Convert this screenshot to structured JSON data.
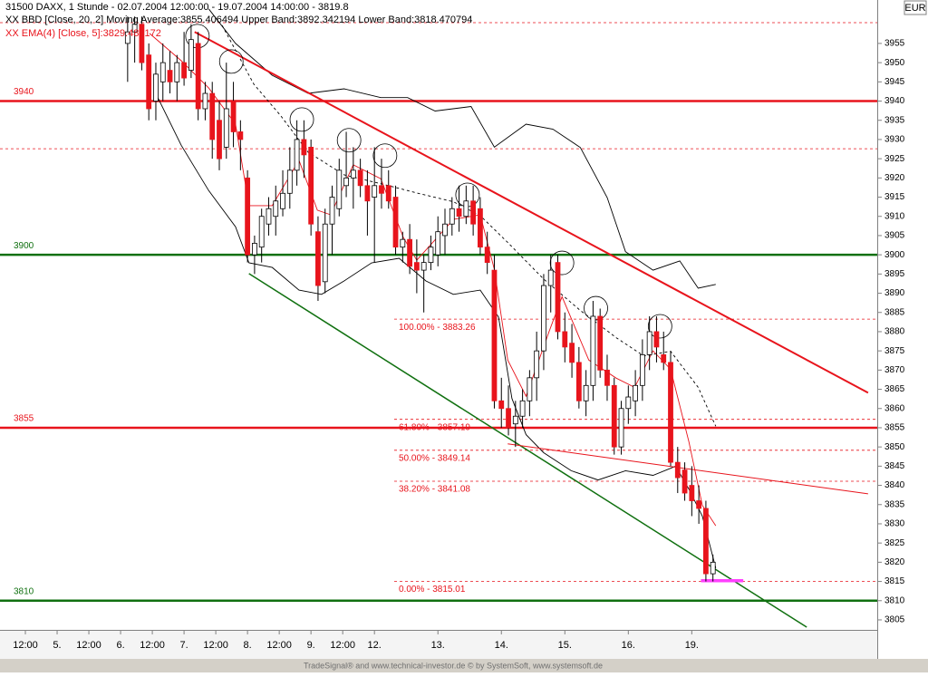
{
  "chart_data": {
    "type": "candlestick",
    "title": "31500  DAXX, 1 Stunde - 02.07.2004 12:00:00 - 19.07.2004 14:00:00 - 3819.8",
    "subtitle": "XX BBD [Close, 20, 2] Moving Average:3855.406494 Upper Band:3892.342194 Lower Band:3818.470794",
    "indicator_label": "XX EMA(4) [Close, 5]:3829.483172",
    "currency": "EUR",
    "footer": "TradeSignal® and www.technical-investor.de © by SystemSoft, www.systemsoft.de",
    "xlim": [
      -8.1,
      116.3
    ],
    "ylim": [
      3802.4,
      3966.3
    ],
    "yticks": [
      3805,
      3810,
      3815,
      3820,
      3825,
      3830,
      3835,
      3840,
      3845,
      3850,
      3855,
      3860,
      3865,
      3870,
      3875,
      3880,
      3885,
      3890,
      3895,
      3900,
      3905,
      3910,
      3915,
      3920,
      3925,
      3930,
      3935,
      3940,
      3945,
      3950,
      3955
    ],
    "xticks": [
      {
        "value": -4.5,
        "label": "12:00"
      },
      {
        "value": 0,
        "label": "5."
      },
      {
        "value": 4.5,
        "label": "12:00"
      },
      {
        "value": 9,
        "label": "6."
      },
      {
        "value": 13.5,
        "label": "12:00"
      },
      {
        "value": 18,
        "label": "7."
      },
      {
        "value": 22.5,
        "label": "12:00"
      },
      {
        "value": 27,
        "label": "8."
      },
      {
        "value": 31.5,
        "label": "12:00"
      },
      {
        "value": 36,
        "label": "9."
      },
      {
        "value": 40.5,
        "label": "12:00"
      },
      {
        "value": 45,
        "label": "12."
      },
      {
        "value": 54,
        "label": "13."
      },
      {
        "value": 63,
        "label": "14."
      },
      {
        "value": 72,
        "label": "15."
      },
      {
        "value": 81,
        "label": "16."
      },
      {
        "value": 90,
        "label": "19."
      }
    ],
    "up_color": "#ffffff",
    "down_color": "#e8141c",
    "candles": {
      "x": [
        10,
        11,
        12,
        13,
        14,
        15,
        16,
        17,
        18,
        19,
        20,
        21,
        22,
        23,
        24,
        25,
        26,
        27,
        28,
        29,
        30,
        31,
        32,
        33,
        34,
        35,
        36,
        37,
        38,
        39,
        40,
        41,
        42,
        43,
        44,
        45,
        46,
        47,
        48,
        49,
        50,
        51,
        52,
        53,
        54,
        55,
        56,
        57,
        58,
        59,
        60,
        61,
        62,
        63,
        64,
        65,
        66,
        67,
        68,
        69,
        70,
        71,
        72,
        73,
        74,
        75,
        76,
        77,
        78,
        79,
        80,
        81,
        82,
        83,
        84,
        85,
        86,
        87,
        88,
        89,
        90,
        91,
        92,
        93
      ],
      "open": [
        3955,
        3958,
        3960,
        3952,
        3940,
        3945,
        3948,
        3945,
        3950,
        3948,
        3955,
        3938,
        3942,
        3935,
        3928,
        3940,
        3932,
        3920,
        3900,
        3902,
        3908,
        3910,
        3912,
        3916,
        3922,
        3930,
        3928,
        3906,
        3893,
        3908,
        3912,
        3918,
        3920,
        3922,
        3918,
        3915,
        3918,
        3918,
        3915,
        3902,
        3904,
        3898,
        3896,
        3898,
        3900,
        3905,
        3908,
        3912,
        3910,
        3914,
        3912,
        3902,
        3896,
        3862,
        3860,
        3856,
        3858,
        3862,
        3868,
        3875,
        3892,
        3898,
        3880,
        3877,
        3872,
        3862,
        3866,
        3884,
        3870,
        3866,
        3850,
        3860,
        3862,
        3866,
        3874,
        3880,
        3874,
        3872,
        3846,
        3844,
        3840,
        3836,
        3834,
        3817
      ],
      "high": [
        3962,
        3962,
        3962,
        3955,
        3950,
        3955,
        3953,
        3952,
        3958,
        3960,
        3958,
        3945,
        3945,
        3940,
        3950,
        3945,
        3935,
        3922,
        3905,
        3912,
        3915,
        3918,
        3922,
        3928,
        3935,
        3935,
        3930,
        3910,
        3912,
        3918,
        3925,
        3932,
        3928,
        3925,
        3922,
        3928,
        3925,
        3922,
        3918,
        3906,
        3908,
        3904,
        3900,
        3905,
        3910,
        3912,
        3915,
        3918,
        3918,
        3918,
        3915,
        3906,
        3900,
        3868,
        3866,
        3862,
        3865,
        3870,
        3880,
        3895,
        3900,
        3900,
        3885,
        3882,
        3876,
        3870,
        3888,
        3886,
        3874,
        3868,
        3862,
        3866,
        3870,
        3878,
        3884,
        3884,
        3880,
        3875,
        3850,
        3846,
        3845,
        3840,
        3836,
        3822
      ],
      "low": [
        3945,
        3950,
        3948,
        3935,
        3935,
        3940,
        3942,
        3940,
        3944,
        3946,
        3935,
        3935,
        3925,
        3922,
        3925,
        3928,
        3922,
        3898,
        3895,
        3898,
        3905,
        3905,
        3910,
        3912,
        3918,
        3920,
        3905,
        3888,
        3890,
        3900,
        3910,
        3915,
        3912,
        3915,
        3905,
        3898,
        3912,
        3912,
        3900,
        3898,
        3895,
        3890,
        3885,
        3896,
        3897,
        3900,
        3905,
        3906,
        3908,
        3905,
        3900,
        3895,
        3860,
        3855,
        3853,
        3850,
        3855,
        3858,
        3862,
        3870,
        3885,
        3878,
        3872,
        3868,
        3860,
        3858,
        3862,
        3868,
        3862,
        3848,
        3848,
        3856,
        3858,
        3862,
        3870,
        3872,
        3870,
        3845,
        3838,
        3836,
        3832,
        3830,
        3815,
        3815
      ],
      "close": [
        3958,
        3960,
        3950,
        3938,
        3947,
        3950,
        3945,
        3950,
        3946,
        3956,
        3938,
        3942,
        3930,
        3925,
        3938,
        3932,
        3930,
        3900,
        3903,
        3910,
        3912,
        3914,
        3916,
        3922,
        3930,
        3926,
        3908,
        3892,
        3908,
        3915,
        3922,
        3920,
        3922,
        3918,
        3914,
        3918,
        3916,
        3914,
        3902,
        3904,
        3897,
        3896,
        3898,
        3902,
        3906,
        3908,
        3912,
        3910,
        3914,
        3908,
        3902,
        3898,
        3862,
        3860,
        3855,
        3858,
        3862,
        3868,
        3875,
        3892,
        3896,
        3880,
        3876,
        3872,
        3862,
        3866,
        3884,
        3870,
        3866,
        3850,
        3860,
        3863,
        3866,
        3874,
        3880,
        3876,
        3872,
        3846,
        3842,
        3838,
        3836,
        3834,
        3817,
        3820
      ]
    },
    "series": [
      {
        "color": "#000000",
        "dash": false,
        "x": [
          21.5,
          25.3,
          30.5,
          35.6,
          40.7,
          45.9,
          49.7,
          53.6,
          58.7,
          62.0,
          66.5,
          70.3,
          74.2,
          78.0,
          80.6,
          84.5,
          88.3,
          90.9,
          93.4
        ],
        "values": [
          3964,
          3955,
          3946.7,
          3942,
          3943.2,
          3940.9,
          3940.9,
          3937.4,
          3938.6,
          3928,
          3934,
          3932.7,
          3927.9,
          3914.9,
          3900.8,
          3896,
          3898.4,
          3891.3,
          3892.3
        ]
      },
      {
        "color": "#000000",
        "dash": false,
        "x": [
          13.8,
          17.6,
          21.5,
          25.3,
          27.2,
          30.5,
          34.3,
          37.5,
          40.7,
          44.6,
          48.5,
          52.3,
          56.2,
          60.0,
          62.6,
          64.5,
          66.5,
          69.0,
          72.9,
          76.7,
          80.6,
          84.5,
          87.7,
          89.6,
          91.5,
          93.4
        ],
        "values": [
          3942.7,
          3928.5,
          3916.7,
          3907.3,
          3897.9,
          3896.7,
          3890.8,
          3889.7,
          3893.2,
          3897.9,
          3899.1,
          3893.2,
          3889.7,
          3890.8,
          3883.8,
          3862.6,
          3853.2,
          3848.5,
          3843.8,
          3841.4,
          3843.8,
          3842.6,
          3845,
          3839,
          3832,
          3818.5
        ]
      },
      {
        "color": "#000000",
        "dash": true,
        "x": [
          23.4,
          27.9,
          31.7,
          35.6,
          40.7,
          45.9,
          51.0,
          56.2,
          60.0,
          63.9,
          69.0,
          74.2,
          79.3,
          83.2,
          87.0,
          90.9,
          93.4
        ],
        "values": [
          3959.7,
          3944.4,
          3936.2,
          3926.7,
          3920.8,
          3918.5,
          3916.1,
          3913.8,
          3910.2,
          3903.2,
          3893.7,
          3885.5,
          3878.4,
          3873.7,
          3874.9,
          3865.5,
          3855.4
        ]
      },
      {
        "color": "#e8141c",
        "dash": false,
        "x": [
          13.1,
          17.6,
          21.5,
          25.3,
          27.2,
          30.5,
          34.3,
          36.9,
          38.8,
          42.0,
          45.9,
          49.1,
          51.0,
          56.2,
          60.0,
          62.0,
          63.9,
          66.5,
          69.7,
          71.6,
          75.4,
          79.3,
          81.9,
          84.5,
          87.0,
          89.6,
          91.5,
          93.4
        ],
        "values": [
          3957.6,
          3950.5,
          3943.4,
          3934,
          3912.8,
          3912.8,
          3924.6,
          3911.6,
          3910.4,
          3923.4,
          3919.8,
          3904.5,
          3898.6,
          3909.2,
          3910.4,
          3896.2,
          3872.6,
          3863.2,
          3879.7,
          3889.1,
          3872.6,
          3867.9,
          3865.5,
          3875,
          3870.2,
          3851.3,
          3834.8,
          3829.5
        ]
      }
    ],
    "levels": [
      {
        "value": 3940,
        "color": "#e8141c"
      },
      {
        "value": 3900,
        "color": "#107010"
      },
      {
        "value": 3855,
        "color": "#e8141c"
      },
      {
        "value": 3810,
        "color": "#107010"
      }
    ],
    "fib_levels": [
      {
        "value": 3883.26,
        "label": "100.00% - 3883.26"
      },
      {
        "value": 3857.19,
        "label": "61.80% - 3857.19"
      },
      {
        "value": 3849.14,
        "label": "50.00% - 3849.14"
      },
      {
        "value": 3841.08,
        "label": "38.20% - 3841.08"
      },
      {
        "value": 3815.01,
        "label": "0.00% - 3815.01"
      }
    ],
    "dashed_levels": [
      3960.4,
      3927.6
    ],
    "trendlines": [
      {
        "color": "#e8141c",
        "width": 2,
        "x": [
          19.5,
          115.0
        ],
        "y": [
          3958,
          3864.1
        ]
      },
      {
        "color": "#107010",
        "width": 1.5,
        "x": [
          27.2,
          106.3
        ],
        "y": [
          3895.1,
          3803.1
        ]
      },
      {
        "color": "#e8141c",
        "width": 1,
        "x": [
          63.9,
          115.0
        ],
        "y": [
          3850.8,
          3837.8
        ]
      },
      {
        "color": "#ff40ff",
        "width": 3.5,
        "x": [
          91.3,
          97.3
        ],
        "y": [
          3815.2,
          3815.2
        ]
      }
    ],
    "markers": {
      "x": [
        19.9,
        24.7,
        34.7,
        41.4,
        46.5,
        58.2,
        71.6,
        76.4,
        85.5
      ],
      "y": [
        3956.9,
        3950.3,
        3935.2,
        3929.8,
        3925.8,
        3915.6,
        3897.9,
        3886.1,
        3881.4
      ]
    }
  }
}
